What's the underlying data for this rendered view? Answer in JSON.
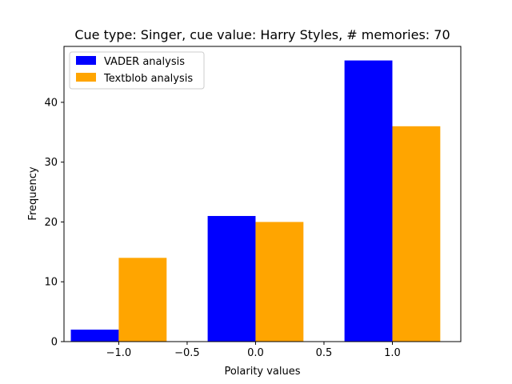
{
  "chart_data": {
    "type": "bar",
    "title": "Cue type: Singer, cue value: Harry Styles, # memories: 70",
    "xlabel": "Polarity values",
    "ylabel": "Frequency",
    "xlim": [
      -1.4,
      1.5
    ],
    "ylim": [
      0,
      49.35
    ],
    "xticks": [
      -1.0,
      -0.5,
      0.0,
      0.5,
      1.0
    ],
    "xtick_labels": [
      "−1.0",
      "−0.5",
      "0.0",
      "0.5",
      "1.0"
    ],
    "yticks": [
      0,
      10,
      20,
      30,
      40
    ],
    "ytick_labels": [
      "0",
      "10",
      "20",
      "30",
      "40"
    ],
    "categories": [
      -1.0,
      0.0,
      1.0
    ],
    "bar_width": 0.35,
    "legend_position": "upper-left",
    "grid": false,
    "series": [
      {
        "name": "VADER analysis",
        "color": "#0000ff",
        "offset": -0.175,
        "values": [
          2,
          21,
          47
        ]
      },
      {
        "name": "Textblob analysis",
        "color": "#ffa500",
        "offset": 0.175,
        "values": [
          14,
          20,
          36
        ]
      }
    ]
  }
}
